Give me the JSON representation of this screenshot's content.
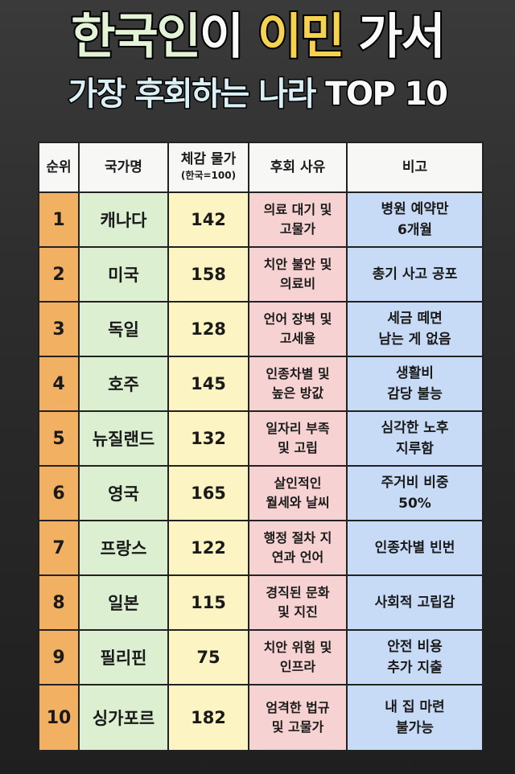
{
  "title": {
    "line1": [
      {
        "text": "한국인",
        "color": "#e3f3d6"
      },
      {
        "text": "이 ",
        "color": "#fafafa"
      },
      {
        "text": "이민",
        "color": "#f6d24f"
      },
      {
        "text": " 가서",
        "color": "#fafafa"
      }
    ],
    "line2": [
      {
        "text": "가장 후회하는 나라 ",
        "color": "#d9f0f7"
      },
      {
        "text": "TOP 10",
        "color": "#fafafa"
      }
    ]
  },
  "table": {
    "headers": {
      "rank": "순위",
      "country": "국가명",
      "price": "체감 물가",
      "price_sub": "(한국=100)",
      "reason": "후회 사유",
      "note": "비고"
    },
    "rows": [
      {
        "rank": "1",
        "country": "캐나다",
        "price": "142",
        "reason": [
          "의료 대기 및",
          "고물가"
        ],
        "note": [
          "병원 예약만",
          "6개월"
        ]
      },
      {
        "rank": "2",
        "country": "미국",
        "price": "158",
        "reason": [
          "치안 불안 및",
          "의료비"
        ],
        "note": [
          "총기 사고 공포"
        ]
      },
      {
        "rank": "3",
        "country": "독일",
        "price": "128",
        "reason": [
          "언어 장벽 및",
          "고세율"
        ],
        "note": [
          "세금 떼면",
          "남는 게 없음"
        ]
      },
      {
        "rank": "4",
        "country": "호주",
        "price": "145",
        "reason": [
          "인종차별 및",
          "높은 방값"
        ],
        "note": [
          "생활비",
          "감당 불능"
        ]
      },
      {
        "rank": "5",
        "country": "뉴질랜드",
        "price": "132",
        "reason": [
          "일자리 부족",
          "및 고립"
        ],
        "note": [
          "심각한 노후",
          "지루함"
        ]
      },
      {
        "rank": "6",
        "country": "영국",
        "price": "165",
        "reason": [
          "살인적인",
          "월세와 날씨"
        ],
        "note": [
          "주거비 비중",
          "50%"
        ]
      },
      {
        "rank": "7",
        "country": "프랑스",
        "price": "122",
        "reason": [
          "행정 절차 지",
          "연과 언어"
        ],
        "note": [
          "인종차별 빈번"
        ]
      },
      {
        "rank": "8",
        "country": "일본",
        "price": "115",
        "reason": [
          "경직된 문화",
          "및 지진"
        ],
        "note": [
          "사회적 고립감"
        ]
      },
      {
        "rank": "9",
        "country": "필리핀",
        "price": "75",
        "reason": [
          "치안 위험 및",
          "인프라"
        ],
        "note": [
          "안전 비용",
          "추가 지출"
        ]
      },
      {
        "rank": "10",
        "country": "싱가포르",
        "price": "182",
        "reason": [
          "엄격한 법규",
          "및 고물가"
        ],
        "note": [
          "내 집 마련",
          "불가능"
        ]
      }
    ]
  },
  "colors": {
    "background": "#2c2c2c",
    "rank_col": "#f2b062",
    "country_col": "#dcefd0",
    "price_col": "#fdf4c3",
    "reason_col": "#f6d2d2",
    "note_col": "#c8dbf6",
    "header": "#f7f7f5"
  }
}
